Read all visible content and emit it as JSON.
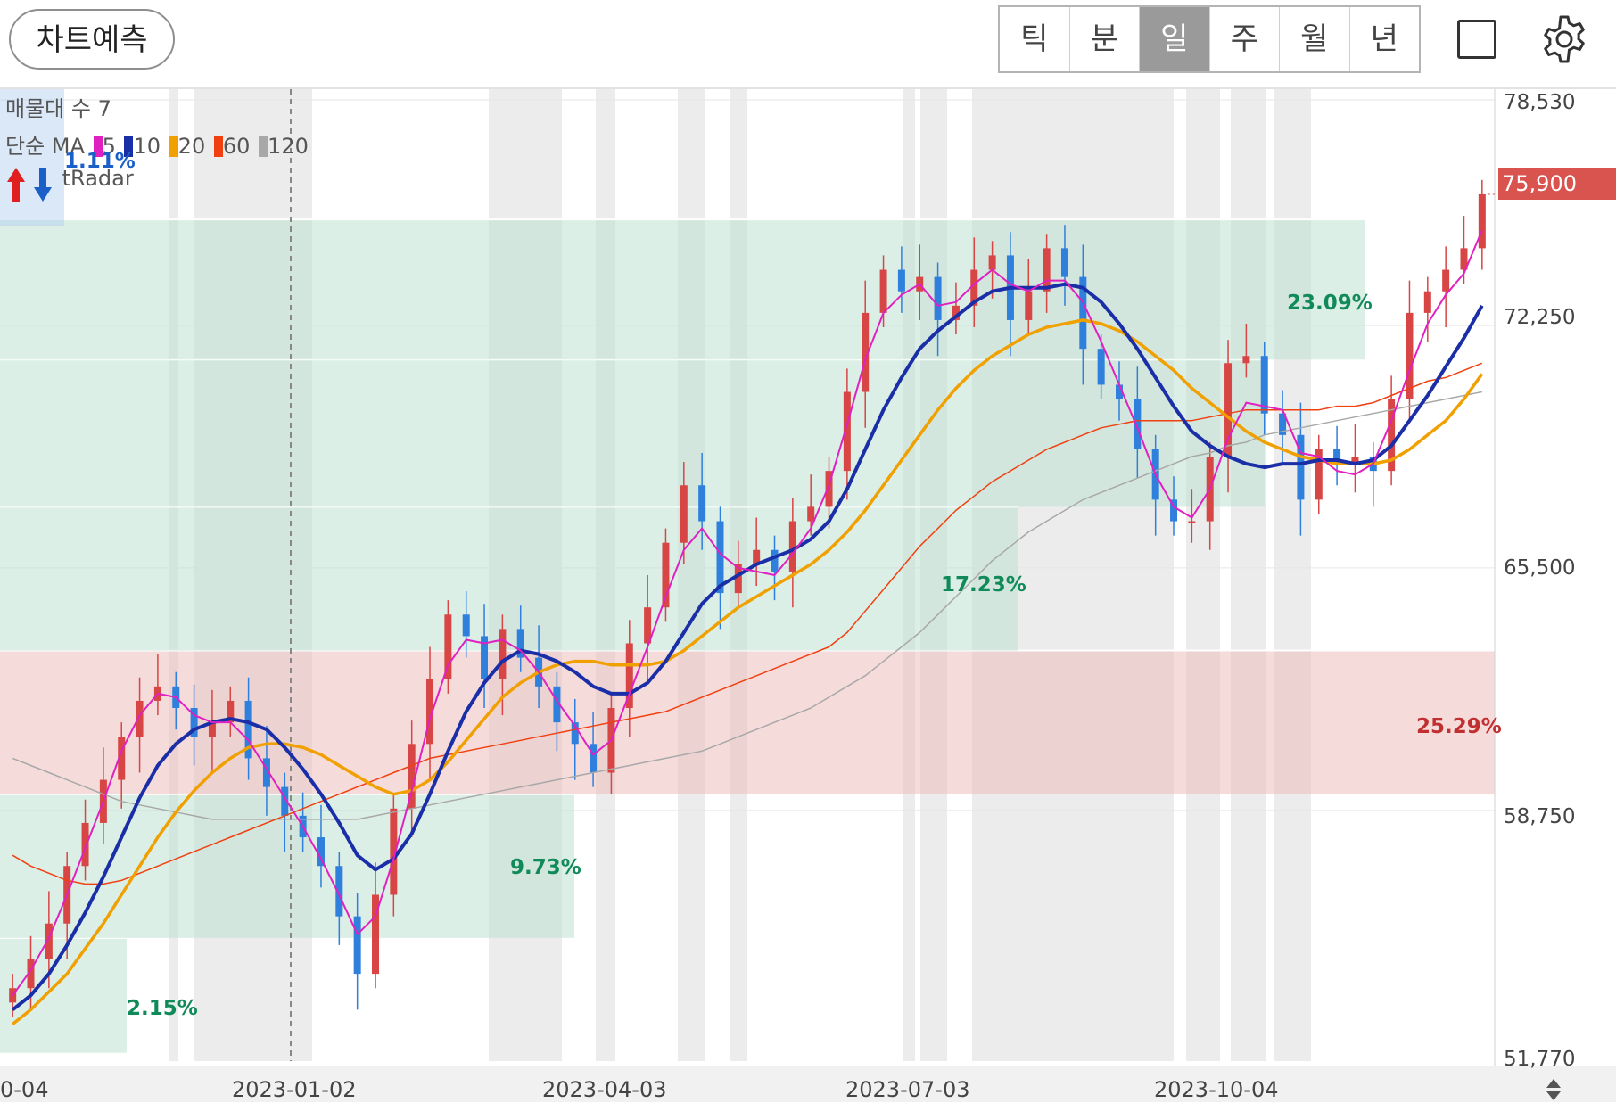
{
  "header": {
    "predict_label": "차트예측",
    "periods": [
      "틱",
      "분",
      "일",
      "주",
      "월",
      "년"
    ],
    "active_period": "일",
    "icons": [
      "square-icon",
      "gear-icon"
    ]
  },
  "legend": {
    "volume_profile": "매물대 수 7",
    "ma_title": "단순 MA",
    "ma": [
      {
        "period": "5",
        "color": "#e020c0"
      },
      {
        "period": "10",
        "color": "#1a2ea8"
      },
      {
        "period": "20",
        "color": "#f0a000"
      },
      {
        "period": "60",
        "color": "#f04010"
      },
      {
        "period": "120",
        "color": "#a8a8a8"
      }
    ],
    "tradar": "tRadar",
    "tradar_pct": "1.11%"
  },
  "price_tag": {
    "value": "75,900",
    "color": "#d9534f"
  },
  "colors": {
    "up": "#d84545",
    "down": "#2f7fdc",
    "zone_green": "#dcefe8",
    "zone_red": "#f6dede",
    "shade": "#ececec"
  },
  "chart_data": {
    "type": "candlestick",
    "y_ticks": [
      "78,530",
      "72,250",
      "65,500",
      "58,750",
      "51,770"
    ],
    "ylim": [
      51770,
      78530
    ],
    "x_ticks": [
      "0-04",
      "2023-01-02",
      "2023-04-03",
      "2023-07-03",
      "2023-10-04"
    ],
    "last_price": 75900,
    "volume_profile_zones": [
      {
        "low": 52000,
        "high": 55200,
        "pct": "2.15%",
        "color": "green"
      },
      {
        "low": 55200,
        "high": 59200,
        "pct": "9.73%",
        "color": "green"
      },
      {
        "low": 59200,
        "high": 63200,
        "pct": "25.29%",
        "color": "red"
      },
      {
        "low": 63200,
        "high": 67200,
        "pct": "17.23%",
        "color": "green"
      },
      {
        "low": 67200,
        "high": 71300,
        "pct": "",
        "color": "green"
      },
      {
        "low": 71300,
        "high": 75200,
        "pct": "23.09%",
        "color": "green"
      }
    ],
    "closes": [
      53800,
      54600,
      55600,
      57200,
      58400,
      59600,
      60800,
      61800,
      62200,
      61600,
      60800,
      61200,
      61800,
      60200,
      59400,
      58600,
      58000,
      57200,
      55800,
      54200,
      56400,
      58800,
      60600,
      62400,
      64200,
      63600,
      62400,
      63800,
      63000,
      62200,
      61200,
      60600,
      59800,
      61600,
      63400,
      64400,
      66200,
      67800,
      66800,
      64800,
      65600,
      66000,
      65400,
      66800,
      67200,
      68200,
      70400,
      72600,
      73800,
      73200,
      73600,
      72400,
      72800,
      73800,
      74200,
      72400,
      73200,
      74400,
      73600,
      71600,
      70600,
      70200,
      68800,
      67400,
      66800,
      66800,
      68600,
      71200,
      71400,
      69800,
      69200,
      67400,
      68800,
      68400,
      68600,
      68200,
      70200,
      72600,
      73200,
      73800,
      74400,
      75900
    ],
    "ma5": [
      53600,
      54300,
      55200,
      56400,
      57700,
      59000,
      60400,
      61400,
      62000,
      61900,
      61400,
      61200,
      61200,
      60700,
      59900,
      59100,
      58300,
      57400,
      56400,
      55300,
      55800,
      57400,
      59300,
      61300,
      62800,
      63500,
      63400,
      63500,
      63200,
      62600,
      61800,
      61100,
      60300,
      60700,
      62000,
      63300,
      64700,
      66000,
      66600,
      65900,
      65500,
      65400,
      65300,
      65900,
      66600,
      67800,
      69500,
      71300,
      72600,
      73100,
      73400,
      72800,
      72900,
      73400,
      73800,
      73400,
      73200,
      73500,
      73500,
      72900,
      71800,
      70600,
      69400,
      68100,
      67200,
      66900,
      67700,
      69100,
      70100,
      70000,
      69900,
      68700,
      68600,
      68200,
      68100,
      68400,
      69600,
      71000,
      72300,
      73100,
      73700,
      74900
    ],
    "ma10": [
      53200,
      53600,
      54200,
      55000,
      55900,
      56900,
      58000,
      59100,
      60000,
      60600,
      61000,
      61200,
      61300,
      61200,
      61000,
      60500,
      59900,
      59200,
      58400,
      57500,
      57100,
      57400,
      58100,
      59200,
      60400,
      61500,
      62300,
      62900,
      63200,
      63100,
      62900,
      62600,
      62200,
      62000,
      62000,
      62300,
      62900,
      63700,
      64500,
      65000,
      65300,
      65600,
      65800,
      66000,
      66300,
      66800,
      67700,
      68800,
      69900,
      70800,
      71600,
      72100,
      72500,
      72900,
      73200,
      73300,
      73300,
      73300,
      73400,
      73300,
      72900,
      72300,
      71600,
      70800,
      70000,
      69300,
      68900,
      68600,
      68400,
      68300,
      68400,
      68400,
      68500,
      68500,
      68400,
      68500,
      68900,
      69600,
      70300,
      71100,
      71900,
      72800
    ],
    "ma20": [
      52800,
      53200,
      53700,
      54200,
      54900,
      55600,
      56400,
      57200,
      58000,
      58700,
      59300,
      59800,
      60200,
      60500,
      60600,
      60600,
      60500,
      60300,
      60000,
      59700,
      59400,
      59200,
      59300,
      59600,
      60100,
      60700,
      61300,
      61900,
      62300,
      62600,
      62800,
      62900,
      62900,
      62800,
      62800,
      62800,
      62900,
      63200,
      63600,
      64000,
      64400,
      64700,
      65000,
      65300,
      65600,
      66000,
      66500,
      67100,
      67800,
      68500,
      69200,
      69900,
      70500,
      71000,
      71400,
      71700,
      72000,
      72200,
      72300,
      72400,
      72300,
      72100,
      71800,
      71400,
      71000,
      70500,
      70100,
      69700,
      69300,
      69000,
      68800,
      68600,
      68500,
      68400,
      68400,
      68400,
      68500,
      68800,
      69200,
      69600,
      70200,
      70900
    ],
    "ma60": [
      57500,
      57200,
      57000,
      56800,
      56700,
      56700,
      56800,
      57000,
      57200,
      57400,
      57600,
      57800,
      58000,
      58200,
      58400,
      58600,
      58800,
      59000,
      59200,
      59400,
      59600,
      59800,
      60000,
      60200,
      60300,
      60400,
      60500,
      60600,
      60700,
      60800,
      60900,
      61000,
      61100,
      61200,
      61300,
      61400,
      61500,
      61700,
      61900,
      62100,
      62300,
      62500,
      62700,
      62900,
      63100,
      63300,
      63700,
      64300,
      64900,
      65500,
      66100,
      66600,
      67100,
      67500,
      67900,
      68200,
      68500,
      68800,
      69000,
      69200,
      69400,
      69500,
      69600,
      69600,
      69600,
      69600,
      69700,
      69800,
      69900,
      69900,
      69900,
      69900,
      69900,
      70000,
      70000,
      70100,
      70300,
      70500,
      70700,
      70800,
      71000,
      71200
    ],
    "ma120": [
      60200,
      60000,
      59800,
      59600,
      59400,
      59200,
      59000,
      58900,
      58800,
      58700,
      58600,
      58500,
      58500,
      58500,
      58500,
      58500,
      58500,
      58500,
      58500,
      58500,
      58600,
      58700,
      58800,
      58900,
      59000,
      59100,
      59200,
      59300,
      59400,
      59500,
      59600,
      59700,
      59800,
      59900,
      60000,
      60100,
      60200,
      60300,
      60400,
      60600,
      60800,
      61000,
      61200,
      61400,
      61600,
      61900,
      62200,
      62500,
      62900,
      63300,
      63700,
      64200,
      64700,
      65200,
      65700,
      66100,
      66500,
      66800,
      67100,
      67400,
      67600,
      67800,
      68000,
      68200,
      68400,
      68600,
      68700,
      68900,
      69000,
      69200,
      69300,
      69400,
      69500,
      69600,
      69700,
      69800,
      69900,
      70000,
      70100,
      70200,
      70300,
      70400
    ]
  }
}
